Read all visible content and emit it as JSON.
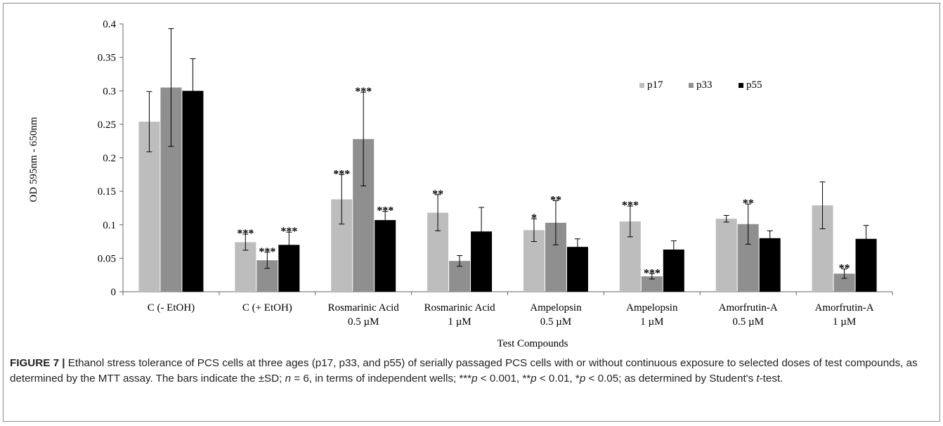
{
  "chart_data": {
    "type": "bar",
    "xlabel": "Test Compounds",
    "ylabel": "OD 595nm - 650nm",
    "ylim": [
      0,
      0.4
    ],
    "yticks": [
      "0",
      "0.05",
      "0.1",
      "0.15",
      "0.2",
      "0.25",
      "0.3",
      "0.35",
      "0.4"
    ],
    "grid": false,
    "legend_position": "top-right",
    "categories": [
      [
        "C (- EtOH)"
      ],
      [
        "C (+ EtOH)"
      ],
      [
        "Rosmarinic Acid",
        "0.5 µM"
      ],
      [
        "Rosmarinic Acid",
        "1 µM"
      ],
      [
        "Ampelopsin",
        "0.5 µM"
      ],
      [
        "Ampelopsin",
        "1 µM"
      ],
      [
        "Amorfrutin-A",
        "0.5 µM"
      ],
      [
        "Amorfrutin-A",
        "1 µM"
      ]
    ],
    "series": [
      {
        "name": "p17",
        "color": "#bdbdbd",
        "values": [
          0.254,
          0.074,
          0.138,
          0.118,
          0.092,
          0.105,
          0.109,
          0.129
        ],
        "errors": [
          0.045,
          0.012,
          0.037,
          0.027,
          0.017,
          0.023,
          0.005,
          0.035
        ],
        "sig": [
          "",
          "***",
          "***",
          "**",
          "*",
          "***",
          "",
          ""
        ]
      },
      {
        "name": "p33",
        "color": "#8f8f8f",
        "values": [
          0.305,
          0.047,
          0.228,
          0.046,
          0.103,
          0.023,
          0.101,
          0.027
        ],
        "errors": [
          0.088,
          0.012,
          0.07,
          0.008,
          0.033,
          0.004,
          0.03,
          0.007
        ],
        "sig": [
          "",
          "***",
          "***",
          "",
          "**",
          "***",
          "**",
          "**"
        ]
      },
      {
        "name": "p55",
        "color": "#000000",
        "values": [
          0.3,
          0.07,
          0.107,
          0.09,
          0.067,
          0.063,
          0.08,
          0.079
        ],
        "errors": [
          0.048,
          0.019,
          0.013,
          0.036,
          0.012,
          0.013,
          0.011,
          0.02
        ],
        "sig": [
          "",
          "***",
          "***",
          "",
          "",
          "",
          "",
          ""
        ]
      }
    ]
  },
  "caption": {
    "label": "FIGURE 7 |",
    "text": " Ethanol stress tolerance of PCS cells at three ages (p17, p33, and p55) of serially passaged PCS cells with or without continuous exposure to selected doses of test compounds, as determined by the MTT assay. The bars indicate the ±SD; ",
    "n_var": "n",
    "text2": " = 6, in terms of independent wells; ***",
    "p1": "p",
    "text3": " < 0.001, **",
    "p2": "p",
    "text4": " < 0.01, *",
    "p3": "p",
    "text5": " < 0.05; as determined by Student's ",
    "t_var": "t",
    "text6": "-test."
  }
}
